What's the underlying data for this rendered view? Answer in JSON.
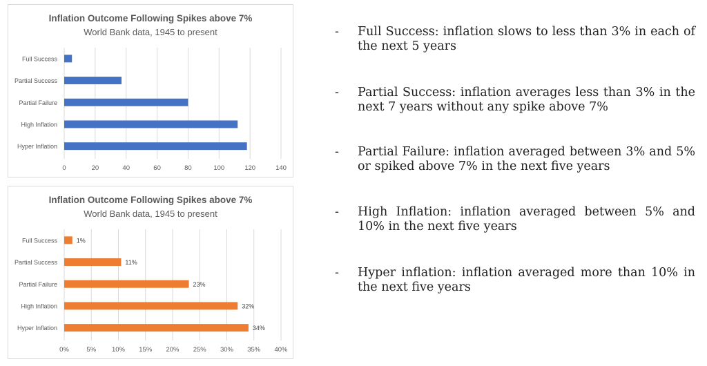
{
  "colors": {
    "blue": "#4472c4",
    "orange": "#ed7d31",
    "axis_text": "#595959",
    "grid": "#d9d9d9"
  },
  "chart_data": [
    {
      "type": "bar",
      "orientation": "horizontal",
      "title": "Inflation Outcome Following Spikes above 7%",
      "subtitle": "World Bank data,  1945 to present",
      "categories": [
        "Full Success",
        "Partial Success",
        "Partial Failure",
        "High Inflation",
        "Hyper Inflation"
      ],
      "values": [
        5,
        37,
        80,
        112,
        118
      ],
      "xlim": [
        0,
        140
      ],
      "xticks": [
        "0",
        "20",
        "40",
        "60",
        "80",
        "100",
        "120",
        "140"
      ],
      "grid": true,
      "color": "#4472c4"
    },
    {
      "type": "bar",
      "orientation": "horizontal",
      "title": "Inflation Outcome Following Spikes above 7%",
      "subtitle": "World Bank data,  1945 to present",
      "categories": [
        "Full Success",
        "Partial Success",
        "Partial Failure",
        "High Inflation",
        "Hyper Inflation"
      ],
      "values": [
        1.5,
        10.5,
        23,
        32,
        34
      ],
      "data_labels": [
        "1%",
        "11%",
        "23%",
        "32%",
        "34%"
      ],
      "xlim": [
        0,
        40
      ],
      "xticks": [
        "0%",
        "5%",
        "10%",
        "15%",
        "20%",
        "25%",
        "30%",
        "35%",
        "40%"
      ],
      "grid": true,
      "color": "#ed7d31"
    }
  ],
  "notes": [
    {
      "dash": "-",
      "text": "Full Success: inflation slows to less than 3% in each of the next 5 years"
    },
    {
      "dash": "-",
      "text": "Partial Success: inflation averages less than 3% in the next 7 years without any spike above 7%"
    },
    {
      "dash": "-",
      "text": "Partial Failure: inflation averaged between 3% and 5% or spiked above 7% in the next five years"
    },
    {
      "dash": "-",
      "text": "High Inflation: inflation averaged between 5% and 10% in the next five years"
    },
    {
      "dash": "-",
      "text": "Hyper inflation: inflation averaged more than 10% in the next five years"
    }
  ]
}
